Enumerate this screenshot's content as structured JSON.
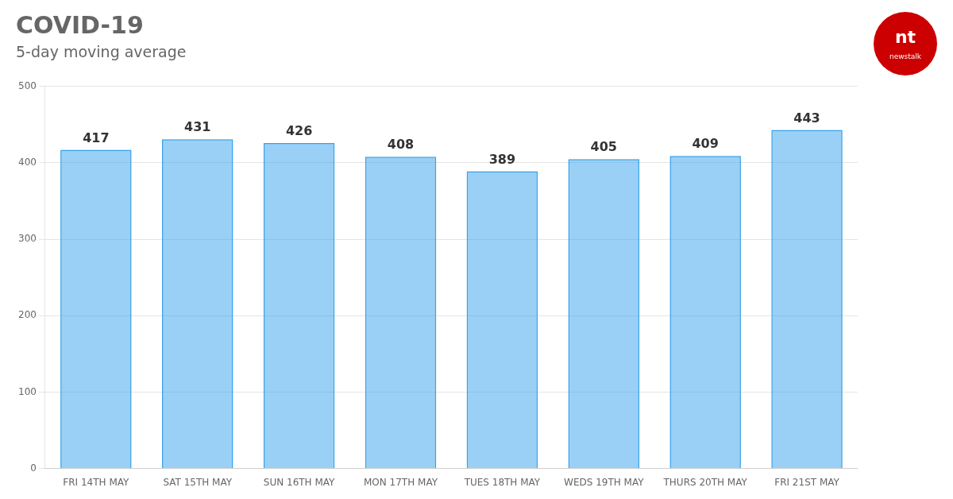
{
  "chart_data": {
    "type": "bar",
    "title": "COVID-19",
    "subtitle": "5-day moving average",
    "categories": [
      "FRI 14TH MAY",
      "SAT 15TH MAY",
      "SUN 16TH MAY",
      "MON 17TH MAY",
      "TUES 18TH MAY",
      "WEDS 19TH MAY",
      "THURS 20TH MAY",
      "FRI 21ST MAY"
    ],
    "values": [
      417,
      431,
      426,
      408,
      389,
      405,
      409,
      443
    ],
    "ylim": [
      0,
      500
    ],
    "yticks": [
      0,
      100,
      200,
      300,
      400,
      500
    ],
    "grid": true,
    "data_labels": true,
    "annotations": [
      "nt",
      "newstalk"
    ]
  }
}
